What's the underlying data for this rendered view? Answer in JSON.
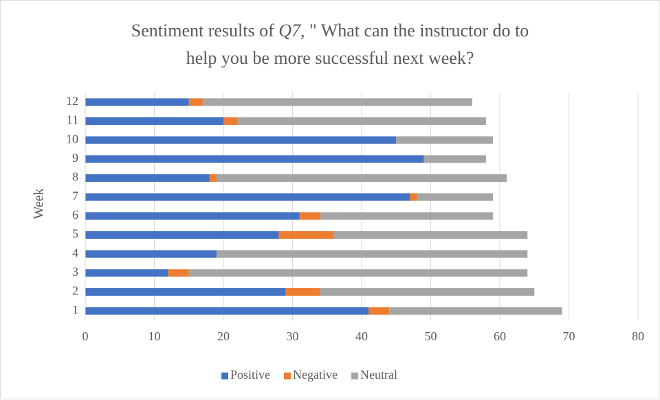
{
  "chart_data": {
    "type": "stacked-barh",
    "title": [
      "Sentiment results of ",
      "Q7",
      ", \" What can the instructor do to",
      "help you be more successful next week?"
    ],
    "y_label": "Week",
    "categories": [
      "1",
      "2",
      "3",
      "4",
      "5",
      "6",
      "7",
      "8",
      "9",
      "10",
      "11",
      "12"
    ],
    "series": [
      {
        "name": "Positive",
        "color": "#4472c4",
        "values": [
          41,
          29,
          12,
          19,
          28,
          31,
          47,
          18,
          49,
          45,
          20,
          15
        ]
      },
      {
        "name": "Negative",
        "color": "#ed7d31",
        "values": [
          3,
          5,
          3,
          0,
          8,
          3,
          1,
          1,
          0,
          0,
          2,
          2
        ]
      },
      {
        "name": "Neutral",
        "color": "#a5a5a5",
        "values": [
          25,
          31,
          49,
          45,
          28,
          25,
          11,
          42,
          9,
          14,
          36,
          39
        ]
      }
    ],
    "xlim": [
      0,
      80
    ],
    "xticks": [
      0,
      10,
      20,
      30,
      40,
      50,
      60,
      70,
      80
    ],
    "grid": true,
    "legend": "bottom"
  }
}
